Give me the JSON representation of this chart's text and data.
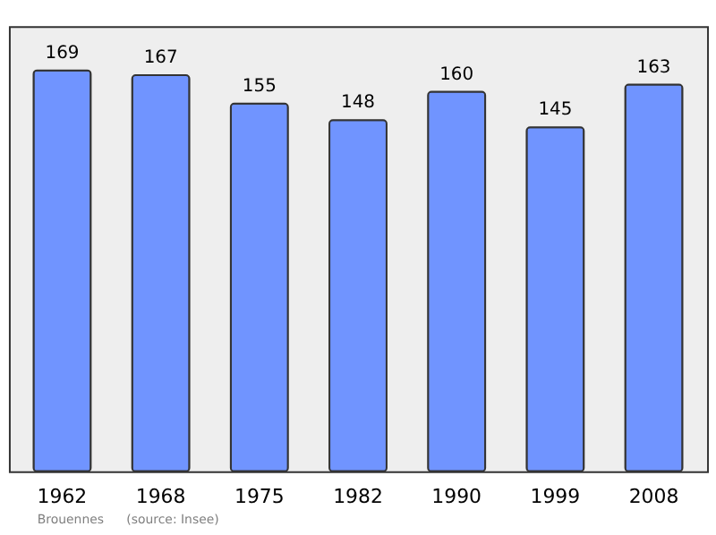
{
  "chart_data": {
    "type": "bar",
    "categories": [
      "1962",
      "1968",
      "1975",
      "1982",
      "1990",
      "1999",
      "2008"
    ],
    "values": [
      169,
      167,
      155,
      148,
      160,
      145,
      163
    ],
    "color": "#7094ff",
    "data_labels": true,
    "grid": false,
    "annotations": [
      "Brouennes",
      "(source: Insee)"
    ]
  }
}
